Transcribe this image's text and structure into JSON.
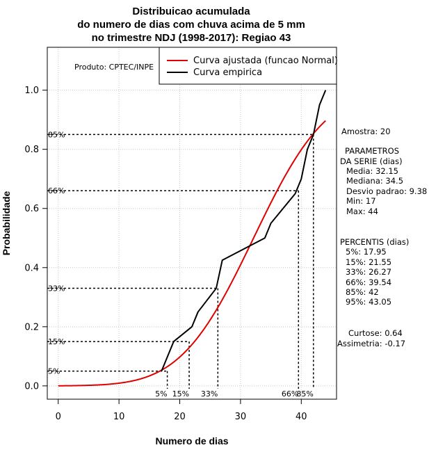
{
  "chart_data": {
    "type": "line",
    "title": [
      "Distribuicao acumulada",
      "do numero de dias com chuva acima de 5 mm",
      "no trimestre NDJ (1998-2017): Regiao 43"
    ],
    "xlabel": "Numero de dias",
    "ylabel": "Probabilidade",
    "xlim": [
      -1.8,
      45.8
    ],
    "ylim": [
      -0.045,
      1.145
    ],
    "x_ticks": [
      0,
      10,
      20,
      30,
      40
    ],
    "y_ticks": [
      0.0,
      0.2,
      0.4,
      0.6,
      0.8,
      1.0
    ],
    "x_tick_labels": [
      "0",
      "10",
      "20",
      "30",
      "40"
    ],
    "y_tick_labels": [
      "0.0",
      "0.2",
      "0.4",
      "0.6",
      "0.8",
      "1.0"
    ],
    "grid": true,
    "produto": "Produto: CPTEC/INPE",
    "legend": {
      "placement": "top-right",
      "entries": [
        {
          "label": "Curva ajustada (funcao Normal)",
          "color": "#e00000"
        },
        {
          "label": "Curva empirica",
          "color": "#000000"
        }
      ]
    },
    "fitted_normal": {
      "name": "Curva ajustada (funcao Normal)",
      "mean": 32.15,
      "sd": 9.38,
      "x_min": 0,
      "x_max": 44,
      "color": "#e00000"
    },
    "empirical": {
      "name": "Curva empirica",
      "color": "#000000",
      "x": [
        17,
        19,
        22,
        23,
        26,
        27,
        34,
        35,
        39,
        40,
        41,
        42,
        43,
        44
      ],
      "y": [
        0.05,
        0.15,
        0.2,
        0.25,
        0.33,
        0.425,
        0.5,
        0.55,
        0.65,
        0.7,
        0.8,
        0.85,
        0.95,
        1.0
      ]
    },
    "percentile_markers": [
      {
        "label": "5%",
        "p": 0.05,
        "x": 17.95
      },
      {
        "label": "15%",
        "p": 0.15,
        "x": 21.55
      },
      {
        "label": "33%",
        "p": 0.33,
        "x": 26.27
      },
      {
        "label": "66%",
        "p": 0.66,
        "x": 39.54
      },
      {
        "label": "85%",
        "p": 0.85,
        "x": 42
      }
    ]
  },
  "side_panel": {
    "amostra": "Amostra: 20",
    "params_title_1": "PARAMETROS",
    "params_title_2": "DA SERIE (dias)",
    "media": "Media: 32.15",
    "mediana": "Mediana: 34.5",
    "desvio": "Desvio padrao: 9.38",
    "min": "Min: 17",
    "max": "Max: 44",
    "percentis_title": "PERCENTIS (dias)",
    "p5": "5%: 17.95",
    "p15": "15%: 21.55",
    "p33": "33%: 26.27",
    "p66": "66%: 39.54",
    "p85": "85%: 42",
    "p95": "95%: 43.05",
    "curtose": "Curtose: 0.64",
    "assimetria": "Assimetria: -0.17"
  }
}
